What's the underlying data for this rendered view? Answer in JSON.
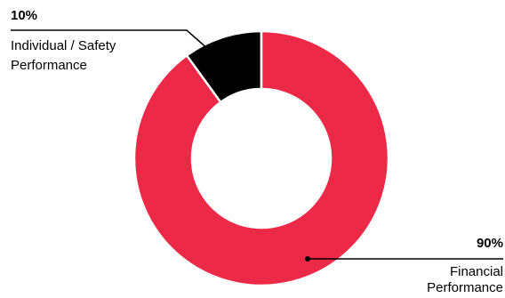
{
  "chart_data": {
    "type": "pie",
    "variant": "donut",
    "title": "",
    "legend": "none",
    "slices": [
      {
        "label_lines": [
          "Individual / Safety",
          "Performance"
        ],
        "percent_label": "10%",
        "value": 10,
        "color": "#000000"
      },
      {
        "label_lines": [
          "Financial",
          "Performance"
        ],
        "percent_label": "90%",
        "value": 90,
        "color": "#ec2a48"
      }
    ]
  }
}
